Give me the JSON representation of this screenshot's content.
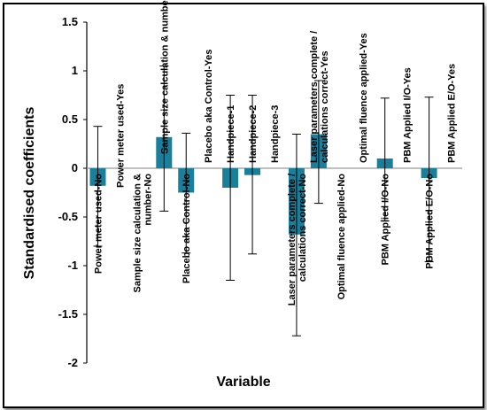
{
  "chart_data": {
    "type": "bar",
    "xlabel": "Variable",
    "ylabel": "Standardised coefficients",
    "ylim": [
      -2,
      1.5
    ],
    "yticks": [
      "1.5",
      "1",
      "0.5",
      "0",
      "-0.5",
      "-1",
      "-1.5",
      "-2"
    ],
    "grid": false,
    "bar_color": "#1a7f9a",
    "categories": [
      "Power meter used-No",
      "Power meter used-Yes",
      "Sample size calculation & number-No",
      "Sample size calculation & number-Yes",
      "Placebo aka Control-No",
      "Placebo aka Control-Yes",
      "Handpiece-1",
      "Handpiece-2",
      "Handpiece-3",
      "Laser parameters complete / calculations correct-No",
      "Laser parameters complete / calculations correct-Yes",
      "Optimal fluence applied-No",
      "Optimal fluence applied-Yes",
      "PBM Applied I/O-No",
      "PBM Applied I/O-Yes",
      "PBM Applied  E/O-No",
      "PBM Applied  E/O-Yes"
    ],
    "values": [
      -0.18,
      0,
      0,
      0.32,
      -0.25,
      0,
      -0.2,
      -0.07,
      0,
      -0.68,
      0.35,
      0,
      0,
      0.1,
      0,
      -0.1,
      0
    ],
    "error_low": [
      -0.8,
      null,
      null,
      -0.44,
      -0.87,
      null,
      -1.15,
      -0.88,
      null,
      -1.72,
      -0.36,
      null,
      null,
      -0.54,
      null,
      -0.96,
      null
    ],
    "error_high": [
      0.43,
      null,
      null,
      1.05,
      0.36,
      null,
      0.75,
      0.75,
      null,
      0.35,
      0.9,
      null,
      null,
      0.72,
      null,
      0.73,
      null
    ]
  }
}
